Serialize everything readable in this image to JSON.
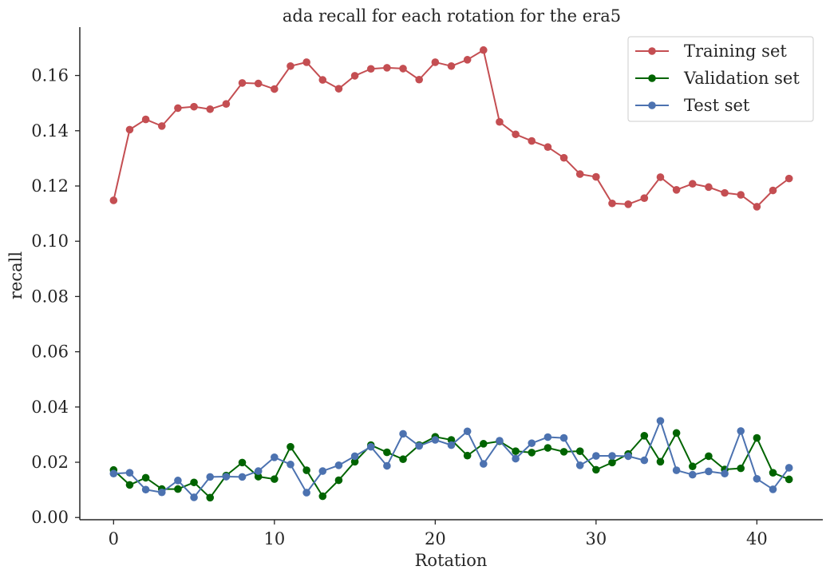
{
  "chart_data": {
    "type": "line",
    "title": "ada recall for each rotation for the era5",
    "xlabel": "Rotation",
    "ylabel": "recall",
    "xlim": [
      -2.1,
      44.1
    ],
    "ylim": [
      -0.0008,
      0.1775
    ],
    "x_ticks": [
      0,
      10,
      20,
      30,
      40
    ],
    "x_tick_labels": [
      "0",
      "10",
      "20",
      "30",
      "40"
    ],
    "y_ticks": [
      0.0,
      0.02,
      0.04,
      0.06,
      0.08,
      0.1,
      0.12,
      0.14,
      0.16
    ],
    "y_tick_labels": [
      "0.00",
      "0.02",
      "0.04",
      "0.06",
      "0.08",
      "0.10",
      "0.12",
      "0.14",
      "0.16"
    ],
    "grid": false,
    "legend_position": "top-right",
    "x": [
      0,
      1,
      2,
      3,
      4,
      5,
      6,
      7,
      8,
      9,
      10,
      11,
      12,
      13,
      14,
      15,
      16,
      17,
      18,
      19,
      20,
      21,
      22,
      23,
      24,
      25,
      26,
      27,
      28,
      29,
      30,
      31,
      32,
      33,
      34,
      35,
      36,
      37,
      38,
      39,
      40,
      41,
      42
    ],
    "series": [
      {
        "name": "Training set",
        "color": "#c44e52",
        "values": [
          0.1148,
          0.1404,
          0.1441,
          0.1417,
          0.1482,
          0.1487,
          0.1478,
          0.1497,
          0.1573,
          0.1571,
          0.1551,
          0.1634,
          0.1648,
          0.1584,
          0.1552,
          0.1599,
          0.1624,
          0.1628,
          0.1625,
          0.1585,
          0.1648,
          0.1634,
          0.1657,
          0.1692,
          0.1432,
          0.1387,
          0.1363,
          0.1341,
          0.1302,
          0.1243,
          0.1233,
          0.1137,
          0.1134,
          0.1156,
          0.1232,
          0.1186,
          0.1208,
          0.1196,
          0.1175,
          0.1168,
          0.1125,
          0.1184,
          0.1227
        ]
      },
      {
        "name": "Validation set",
        "color": "#006400",
        "values": [
          0.0172,
          0.0118,
          0.0144,
          0.0103,
          0.0103,
          0.0127,
          0.0072,
          0.0152,
          0.0199,
          0.0148,
          0.0139,
          0.0256,
          0.0171,
          0.0077,
          0.0135,
          0.0202,
          0.0262,
          0.0236,
          0.0211,
          0.0262,
          0.0292,
          0.0281,
          0.0224,
          0.0267,
          0.0276,
          0.024,
          0.0235,
          0.0252,
          0.0238,
          0.024,
          0.0173,
          0.0199,
          0.023,
          0.0296,
          0.0202,
          0.0306,
          0.0185,
          0.0222,
          0.0174,
          0.0178,
          0.0288,
          0.0162,
          0.0138
        ]
      },
      {
        "name": "Test set",
        "color": "#4c72b0",
        "values": [
          0.0159,
          0.0162,
          0.0101,
          0.0091,
          0.0134,
          0.0073,
          0.0147,
          0.0148,
          0.0147,
          0.0168,
          0.0218,
          0.0192,
          0.009,
          0.0168,
          0.0189,
          0.0222,
          0.0256,
          0.0187,
          0.0303,
          0.0259,
          0.0281,
          0.0262,
          0.0312,
          0.0194,
          0.0278,
          0.0213,
          0.0269,
          0.0291,
          0.0288,
          0.0189,
          0.0223,
          0.0223,
          0.0222,
          0.0207,
          0.035,
          0.0171,
          0.0155,
          0.0167,
          0.0159,
          0.0313,
          0.014,
          0.0102,
          0.018
        ]
      }
    ]
  }
}
